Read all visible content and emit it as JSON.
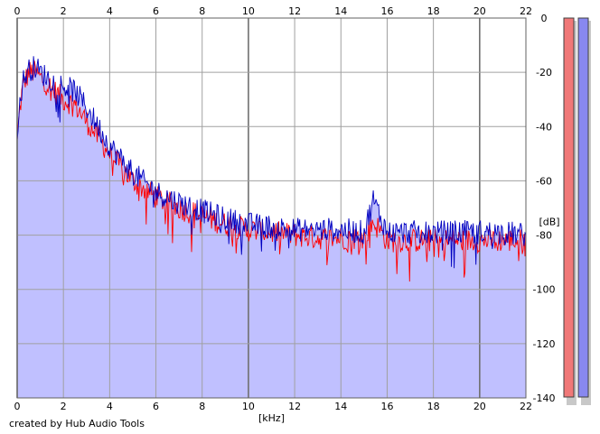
{
  "credit": "created by Hub Audio Tools",
  "colors": {
    "fill": "#c0c0ff",
    "left_channel": "#ff0000",
    "right_channel": "#0000c0",
    "grid": "#a0a0a0",
    "left_meter": "#f07878",
    "right_meter": "#8888f0"
  },
  "chart_data": {
    "type": "area",
    "xlabel": "[kHz]",
    "ylabel": "[dB]",
    "xlim": [
      0,
      22
    ],
    "ylim": [
      -140,
      0
    ],
    "x_ticks": [
      "0",
      "2",
      "4",
      "6",
      "8",
      "10",
      "12",
      "14",
      "16",
      "18",
      "20",
      "22"
    ],
    "y_ticks": [
      "0",
      "-20",
      "-40",
      "-60",
      "-80",
      "-100",
      "-120",
      "-140"
    ],
    "grid": true,
    "x_axis_labels": "top and bottom",
    "y_axis_labels": "right",
    "series": [
      {
        "color": "#ff0000",
        "x": [
          0,
          0.1,
          0.2,
          0.3,
          0.5,
          0.8,
          1.0,
          1.5,
          2.0,
          2.5,
          3.0,
          3.5,
          4.0,
          4.5,
          5.0,
          6.0,
          7.0,
          8.0,
          9.0,
          10.0,
          11.0,
          12.0,
          13.0,
          14.0,
          15.0,
          15.4,
          16.0,
          17.0,
          18.0,
          19.0,
          20.0,
          21.0,
          22.0
        ],
        "values": [
          -45,
          -35,
          -28,
          -24,
          -20,
          -20,
          -22,
          -26,
          -30,
          -32,
          -38,
          -44,
          -50,
          -55,
          -60,
          -66,
          -70,
          -73,
          -76,
          -78,
          -79,
          -80,
          -81,
          -81,
          -81,
          -75,
          -82,
          -82,
          -82,
          -82,
          -82,
          -82,
          -82
        ]
      },
      {
        "color": "#0000c0",
        "x": [
          0,
          0.1,
          0.2,
          0.3,
          0.5,
          0.8,
          1.0,
          1.5,
          2.0,
          2.5,
          3.0,
          3.5,
          4.0,
          4.5,
          5.0,
          6.0,
          7.0,
          8.0,
          9.0,
          10.0,
          11.0,
          12.0,
          13.0,
          14.0,
          15.0,
          15.4,
          16.0,
          17.0,
          18.0,
          19.0,
          20.0,
          21.0,
          22.0
        ],
        "values": [
          -45,
          -32,
          -26,
          -22,
          -19,
          -18,
          -20,
          -23,
          -25,
          -27,
          -33,
          -40,
          -47,
          -52,
          -57,
          -64,
          -68,
          -71,
          -74,
          -76,
          -77,
          -78,
          -78,
          -78,
          -79,
          -67,
          -79,
          -79,
          -79,
          -79,
          -79,
          -79,
          -80
        ]
      }
    ]
  },
  "meters": [
    {
      "channel": "left",
      "level": 1.0
    },
    {
      "channel": "right",
      "level": 1.0
    }
  ]
}
